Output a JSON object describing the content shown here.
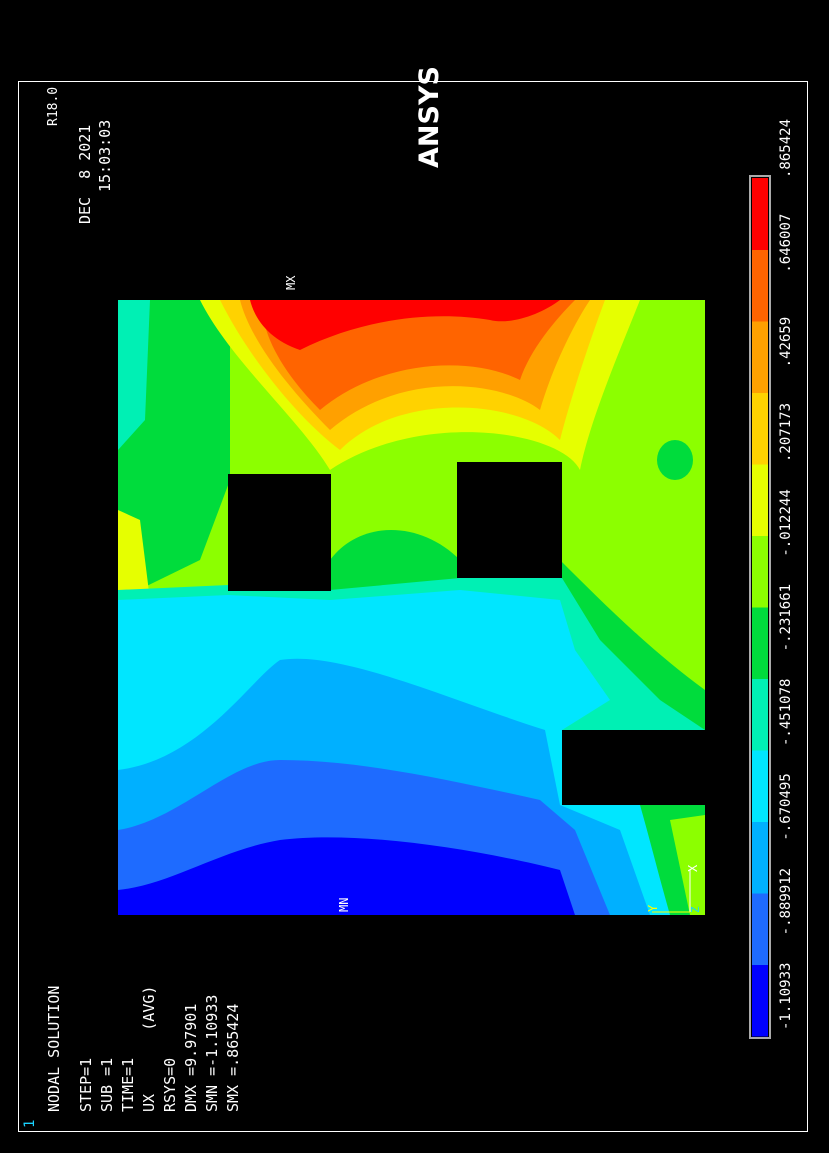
{
  "window_number": "1",
  "info_lines": [
    "NODAL SOLUTION",
    "",
    "STEP=1",
    "SUB =1",
    "TIME=1",
    "UX       (AVG)",
    "RSYS=0",
    "DMX =9.97901",
    "SMN =-1.10933",
    "SMX =.865424"
  ],
  "logo": {
    "title": "ANSYS",
    "version": "R18.0"
  },
  "date": "DEC  8 2021",
  "time": "15:03:03",
  "legend": {
    "tick_labels": [
      "-1.10933",
      "-.889912",
      "-.670495",
      "-.451078",
      "-.231661",
      "-.012244",
      ".207173",
      ".42659",
      ".646007",
      ".865424"
    ],
    "colors": [
      "#0000ff",
      "#1e6bff",
      "#00b0ff",
      "#00e6ff",
      "#00f0b4",
      "#00dc3c",
      "#8cff00",
      "#e6ff00",
      "#ffd200",
      "#ffa000",
      "#ff6400",
      "#ff0000"
    ]
  },
  "labels": {
    "mx": "MX",
    "mn": "MN",
    "axis_x": "X",
    "axis_y": "Y",
    "axis_z": "Z"
  }
}
